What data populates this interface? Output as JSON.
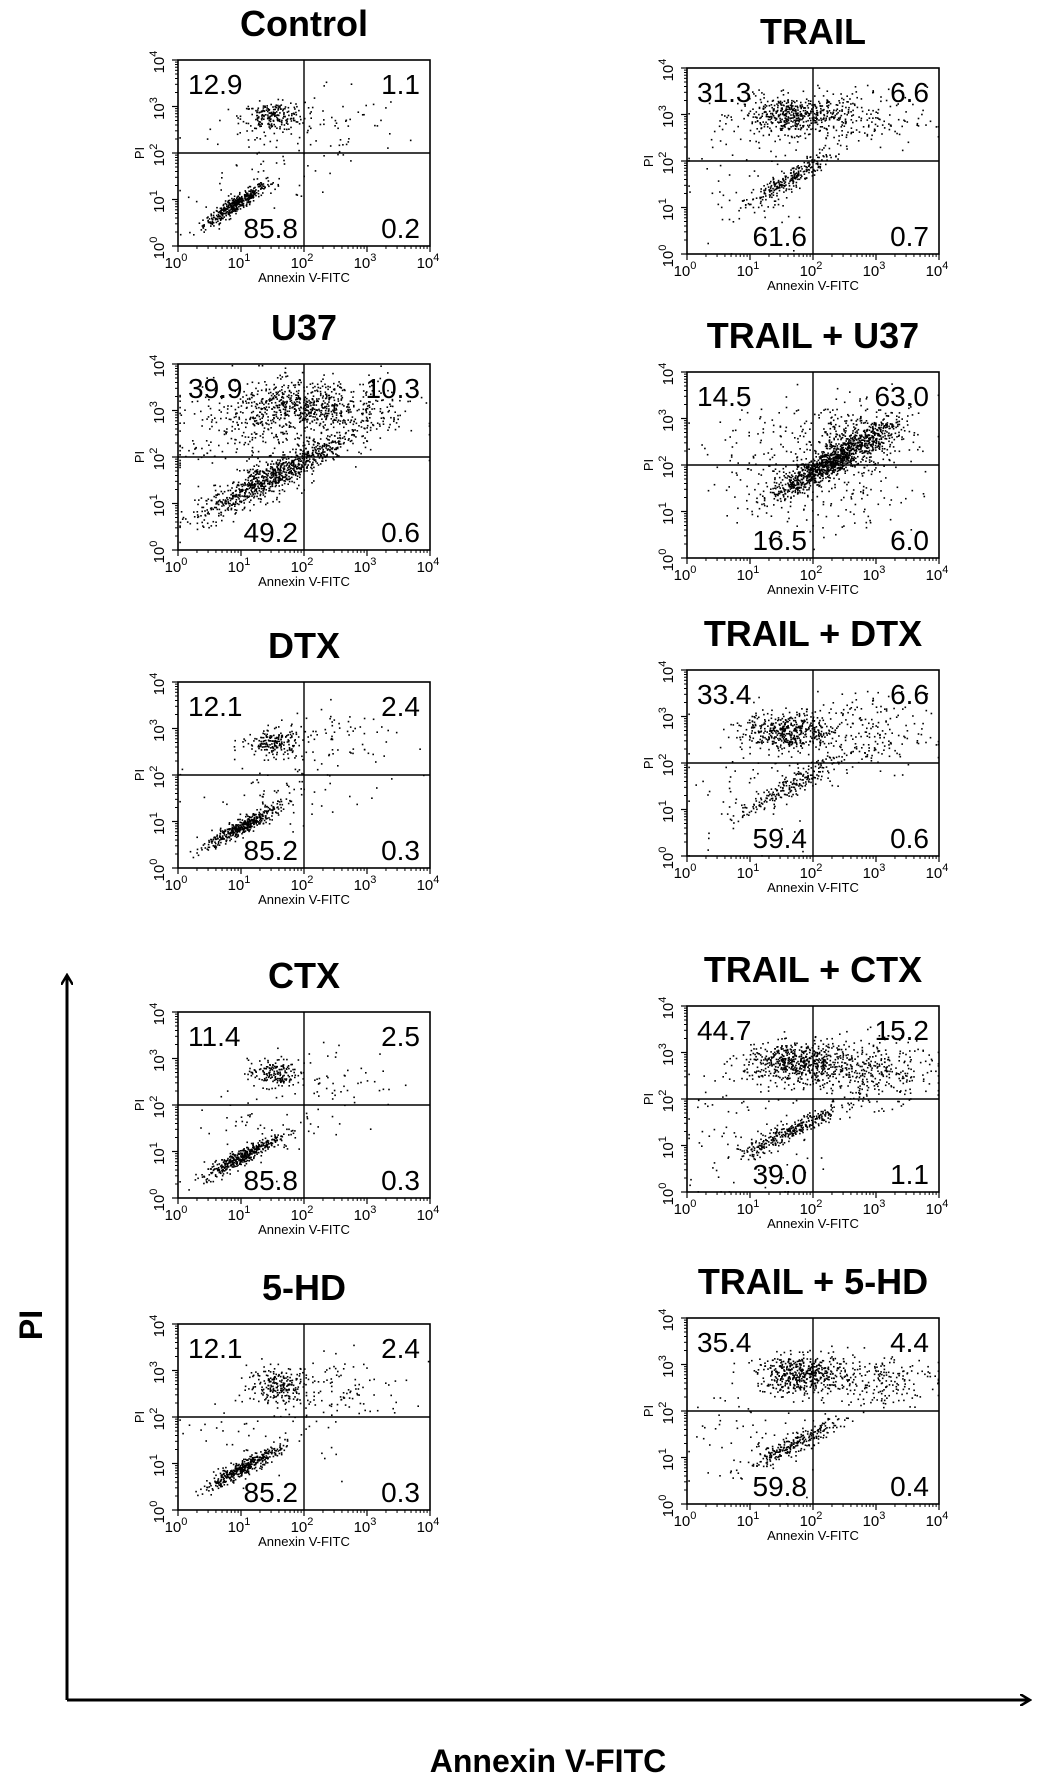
{
  "figure": {
    "y_axis_label": "PI",
    "x_axis_label": "Annexin V-FITC"
  },
  "chart_data": [
    {
      "type": "scatter",
      "title": "Control",
      "xlabel": "Annexin V-FITC",
      "ylabel": "PI",
      "xscale": "log",
      "yscale": "log",
      "xlim": [
        1,
        10000
      ],
      "ylim": [
        1,
        10000
      ],
      "x_ticks": [
        "10^0",
        "10^1",
        "10^2",
        "10^3",
        "10^4"
      ],
      "y_ticks": [
        "10^0",
        "10^1",
        "10^2",
        "10^3",
        "10^4"
      ],
      "quadrants": {
        "upper_left": "12.9",
        "upper_right": "1.1",
        "lower_left": "85.8",
        "lower_right": "0.2"
      }
    },
    {
      "type": "scatter",
      "title": "TRAIL",
      "xlabel": "Annexin V-FITC",
      "ylabel": "PI",
      "xscale": "log",
      "yscale": "log",
      "xlim": [
        1,
        10000
      ],
      "ylim": [
        1,
        10000
      ],
      "x_ticks": [
        "10^0",
        "10^1",
        "10^2",
        "10^3",
        "10^4"
      ],
      "y_ticks": [
        "10^0",
        "10^1",
        "10^2",
        "10^3",
        "10^4"
      ],
      "quadrants": {
        "upper_left": "31.3",
        "upper_right": "6.6",
        "lower_left": "61.6",
        "lower_right": "0.7"
      }
    },
    {
      "type": "scatter",
      "title": "U37",
      "xlabel": "Annexin V-FITC",
      "ylabel": "PI",
      "xscale": "log",
      "yscale": "log",
      "xlim": [
        1,
        10000
      ],
      "ylim": [
        1,
        10000
      ],
      "x_ticks": [
        "10^0",
        "10^1",
        "10^2",
        "10^3",
        "10^4"
      ],
      "y_ticks": [
        "10^0",
        "10^1",
        "10^2",
        "10^3",
        "10^4"
      ],
      "quadrants": {
        "upper_left": "39.9",
        "upper_right": "10.3",
        "lower_left": "49.2",
        "lower_right": "0.6"
      }
    },
    {
      "type": "scatter",
      "title": "TRAIL + U37",
      "xlabel": "Annexin V-FITC",
      "ylabel": "PI",
      "xscale": "log",
      "yscale": "log",
      "xlim": [
        1,
        10000
      ],
      "ylim": [
        1,
        10000
      ],
      "x_ticks": [
        "10^0",
        "10^1",
        "10^2",
        "10^3",
        "10^4"
      ],
      "y_ticks": [
        "10^0",
        "10^1",
        "10^2",
        "10^3",
        "10^4"
      ],
      "quadrants": {
        "upper_left": "14.5",
        "upper_right": "63.0",
        "lower_left": "16.5",
        "lower_right": "6.0"
      }
    },
    {
      "type": "scatter",
      "title": "DTX",
      "xlabel": "Annexin V-FITC",
      "ylabel": "PI",
      "xscale": "log",
      "yscale": "log",
      "xlim": [
        1,
        10000
      ],
      "ylim": [
        1,
        10000
      ],
      "x_ticks": [
        "10^0",
        "10^1",
        "10^2",
        "10^3",
        "10^4"
      ],
      "y_ticks": [
        "10^0",
        "10^1",
        "10^2",
        "10^3",
        "10^4"
      ],
      "quadrants": {
        "upper_left": "12.1",
        "upper_right": "2.4",
        "lower_left": "85.2",
        "lower_right": "0.3"
      }
    },
    {
      "type": "scatter",
      "title": "TRAIL + DTX",
      "xlabel": "Annexin V-FITC",
      "ylabel": "PI",
      "xscale": "log",
      "yscale": "log",
      "xlim": [
        1,
        10000
      ],
      "ylim": [
        1,
        10000
      ],
      "x_ticks": [
        "10^0",
        "10^1",
        "10^2",
        "10^3",
        "10^4"
      ],
      "y_ticks": [
        "10^0",
        "10^1",
        "10^2",
        "10^3",
        "10^4"
      ],
      "quadrants": {
        "upper_left": "33.4",
        "upper_right": "6.6",
        "lower_left": "59.4",
        "lower_right": "0.6"
      }
    },
    {
      "type": "scatter",
      "title": "CTX",
      "xlabel": "Annexin V-FITC",
      "ylabel": "PI",
      "xscale": "log",
      "yscale": "log",
      "xlim": [
        1,
        10000
      ],
      "ylim": [
        1,
        10000
      ],
      "x_ticks": [
        "10^0",
        "10^1",
        "10^2",
        "10^3",
        "10^4"
      ],
      "y_ticks": [
        "10^0",
        "10^1",
        "10^2",
        "10^3",
        "10^4"
      ],
      "quadrants": {
        "upper_left": "11.4",
        "upper_right": "2.5",
        "lower_left": "85.8",
        "lower_right": "0.3"
      }
    },
    {
      "type": "scatter",
      "title": "TRAIL + CTX",
      "xlabel": "Annexin V-FITC",
      "ylabel": "PI",
      "xscale": "log",
      "yscale": "log",
      "xlim": [
        1,
        10000
      ],
      "ylim": [
        1,
        10000
      ],
      "x_ticks": [
        "10^0",
        "10^1",
        "10^2",
        "10^3",
        "10^4"
      ],
      "y_ticks": [
        "10^0",
        "10^1",
        "10^2",
        "10^3",
        "10^4"
      ],
      "quadrants": {
        "upper_left": "44.7",
        "upper_right": "15.2",
        "lower_left": "39.0",
        "lower_right": "1.1"
      }
    },
    {
      "type": "scatter",
      "title": "5-HD",
      "xlabel": "Annexin V-FITC",
      "ylabel": "PI",
      "xscale": "log",
      "yscale": "log",
      "xlim": [
        1,
        10000
      ],
      "ylim": [
        1,
        10000
      ],
      "x_ticks": [
        "10^0",
        "10^1",
        "10^2",
        "10^3",
        "10^4"
      ],
      "y_ticks": [
        "10^0",
        "10^1",
        "10^2",
        "10^3",
        "10^4"
      ],
      "quadrants": {
        "upper_left": "12.1",
        "upper_right": "2.4",
        "lower_left": "85.2",
        "lower_right": "0.3"
      }
    },
    {
      "type": "scatter",
      "title": "TRAIL + 5-HD",
      "xlabel": "Annexin V-FITC",
      "ylabel": "PI",
      "xscale": "log",
      "yscale": "log",
      "xlim": [
        1,
        10000
      ],
      "ylim": [
        1,
        10000
      ],
      "x_ticks": [
        "10^0",
        "10^1",
        "10^2",
        "10^3",
        "10^4"
      ],
      "y_ticks": [
        "10^0",
        "10^1",
        "10^2",
        "10^3",
        "10^4"
      ],
      "quadrants": {
        "upper_left": "35.4",
        "upper_right": "4.4",
        "lower_left": "59.8",
        "lower_right": "0.4"
      }
    }
  ]
}
